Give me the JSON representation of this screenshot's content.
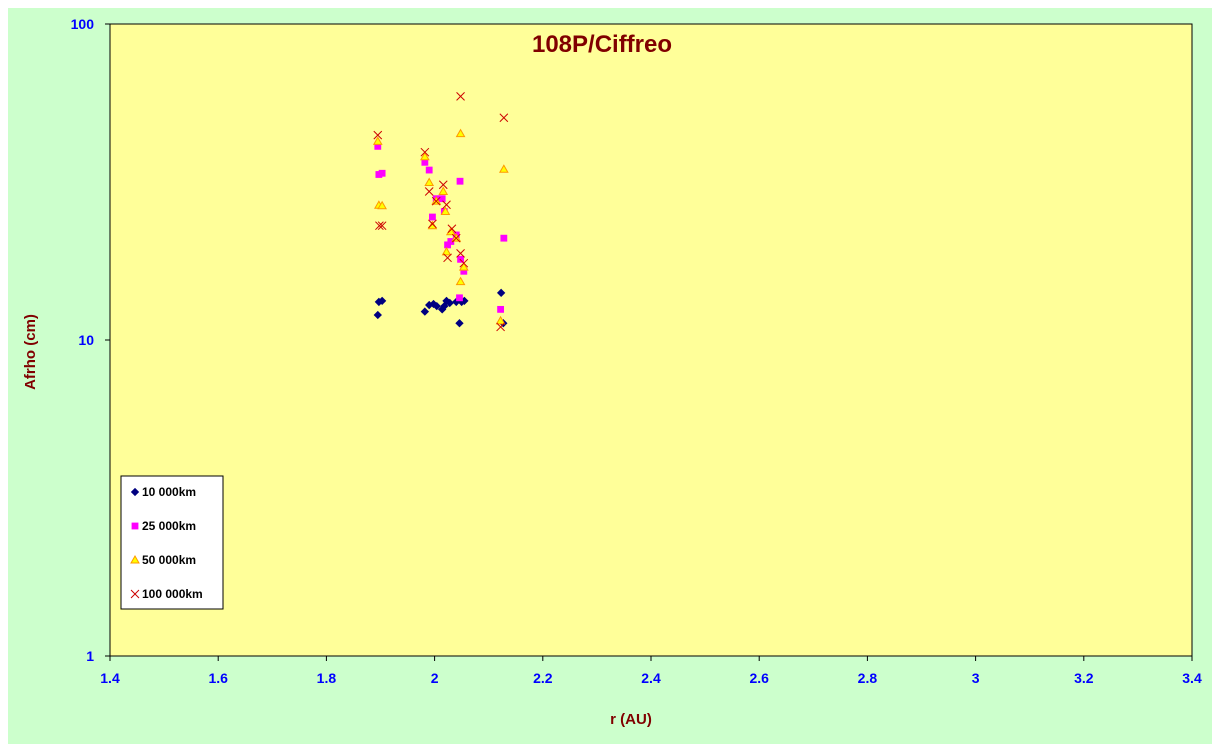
{
  "chart_data": {
    "type": "scatter",
    "title": "108P/Ciffreo",
    "xlabel": "r (AU)",
    "ylabel": "Afrho (cm)",
    "xlim": [
      1.4,
      3.4
    ],
    "ylim": [
      1,
      100
    ],
    "yscale": "log",
    "x_ticks": [
      "1.4",
      "1.6",
      "1.8",
      "2",
      "2.2",
      "2.4",
      "2.6",
      "2.8",
      "3",
      "3.2",
      "3.4"
    ],
    "y_ticks": [
      "1",
      "10",
      "100"
    ],
    "grid": false,
    "legend_position": "bottom-left",
    "colors": {
      "chart_background": "#ccffcc",
      "plot_background": "#ffff99",
      "title": "#800000",
      "tick_labels": "#0000ff",
      "axis_titles": "#800000"
    },
    "series": [
      {
        "name": "10 000km",
        "marker": "diamond",
        "color": "#000080",
        "points": [
          [
            1.895,
            12.0
          ],
          [
            1.897,
            13.2
          ],
          [
            1.903,
            13.3
          ],
          [
            1.982,
            12.3
          ],
          [
            1.99,
            12.9
          ],
          [
            1.998,
            13.0
          ],
          [
            2.004,
            12.8
          ],
          [
            2.014,
            12.5
          ],
          [
            2.018,
            12.8
          ],
          [
            2.022,
            13.3
          ],
          [
            2.028,
            13.1
          ],
          [
            2.04,
            13.2
          ],
          [
            2.046,
            11.3
          ],
          [
            2.05,
            13.2
          ],
          [
            2.055,
            13.3
          ],
          [
            2.123,
            14.1
          ],
          [
            2.127,
            11.3
          ]
        ]
      },
      {
        "name": "25 000km",
        "marker": "square",
        "color": "#ff00ff",
        "points": [
          [
            1.895,
            41.0
          ],
          [
            1.897,
            33.4
          ],
          [
            1.903,
            33.7
          ],
          [
            1.982,
            36.5
          ],
          [
            1.99,
            34.5
          ],
          [
            1.996,
            24.5
          ],
          [
            2.003,
            28.0
          ],
          [
            2.014,
            28.0
          ],
          [
            2.018,
            25.5
          ],
          [
            2.024,
            20.0
          ],
          [
            2.03,
            20.5
          ],
          [
            2.04,
            21.5
          ],
          [
            2.047,
            31.8
          ],
          [
            2.048,
            18.0
          ],
          [
            2.054,
            16.5
          ],
          [
            2.046,
            13.6
          ],
          [
            2.122,
            12.5
          ],
          [
            2.128,
            21.0
          ]
        ]
      },
      {
        "name": "50 000km",
        "marker": "triangle",
        "color": "#ff9900",
        "points": [
          [
            1.895,
            42.5
          ],
          [
            1.897,
            26.7
          ],
          [
            1.903,
            26.6
          ],
          [
            1.982,
            38.0
          ],
          [
            1.99,
            31.5
          ],
          [
            1.996,
            23.0
          ],
          [
            2.003,
            27.5
          ],
          [
            2.016,
            29.5
          ],
          [
            2.02,
            25.5
          ],
          [
            2.022,
            19.0
          ],
          [
            2.03,
            22.0
          ],
          [
            2.04,
            21.0
          ],
          [
            2.048,
            45.0
          ],
          [
            2.048,
            15.3
          ],
          [
            2.054,
            17.0
          ],
          [
            2.122,
            11.5
          ],
          [
            2.128,
            34.7
          ]
        ]
      },
      {
        "name": "100 000km",
        "marker": "x",
        "color": "#cc0000",
        "points": [
          [
            1.895,
            44.5
          ],
          [
            1.898,
            23.0
          ],
          [
            1.903,
            23.0
          ],
          [
            1.982,
            39.3
          ],
          [
            1.99,
            29.5
          ],
          [
            1.996,
            23.3
          ],
          [
            2.003,
            27.5
          ],
          [
            2.016,
            31.0
          ],
          [
            2.022,
            26.8
          ],
          [
            2.024,
            18.2
          ],
          [
            2.032,
            22.5
          ],
          [
            2.04,
            21.0
          ],
          [
            2.048,
            59.0
          ],
          [
            2.048,
            18.8
          ],
          [
            2.054,
            17.5
          ],
          [
            2.122,
            11.0
          ],
          [
            2.128,
            50.5
          ]
        ]
      }
    ]
  }
}
